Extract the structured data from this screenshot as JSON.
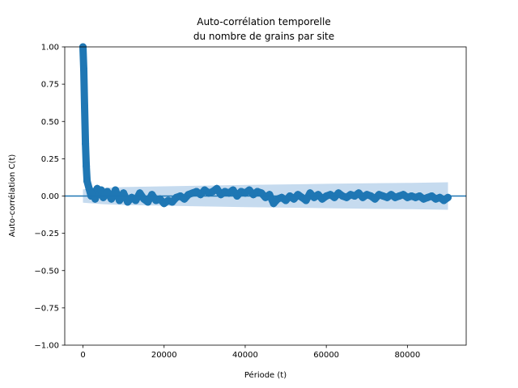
{
  "chart_data": {
    "type": "scatter",
    "title_line1": "Auto-corrélation temporelle",
    "title_line2": "du nombre de grains par site",
    "xlabel": "Période (t)",
    "ylabel": "Auto-corrélation C(t)",
    "xlim": [
      -4500,
      94500
    ],
    "ylim": [
      -1.0,
      1.0
    ],
    "x_ticks": [
      0,
      20000,
      40000,
      60000,
      80000
    ],
    "x_tick_labels": [
      "0",
      "20000",
      "40000",
      "60000",
      "80000"
    ],
    "y_ticks": [
      -1.0,
      -0.75,
      -0.5,
      -0.25,
      0.0,
      0.25,
      0.5,
      0.75,
      1.0
    ],
    "y_tick_labels": [
      "−1.00",
      "−0.75",
      "−0.50",
      "−0.25",
      "0.00",
      "0.25",
      "0.50",
      "0.75",
      "1.00"
    ],
    "grid": false,
    "zero_line": 0.0,
    "confidence_band": {
      "x": [
        0,
        5000,
        10000,
        20000,
        30000,
        40000,
        50000,
        60000,
        70000,
        80000,
        90000
      ],
      "upper": [
        0.045,
        0.055,
        0.06,
        0.065,
        0.07,
        0.075,
        0.078,
        0.082,
        0.085,
        0.088,
        0.092
      ],
      "lower": [
        -0.045,
        -0.055,
        -0.06,
        -0.065,
        -0.07,
        -0.075,
        -0.078,
        -0.082,
        -0.085,
        -0.088,
        -0.092
      ]
    },
    "series": [
      {
        "x": [
          0,
          200,
          400,
          600,
          800,
          1000,
          1500,
          2000,
          2500,
          3000,
          3500,
          4000,
          4500,
          5000,
          6000,
          7000,
          8000,
          9000,
          10000,
          11000,
          12000,
          13000,
          14000,
          15000,
          16000,
          17000,
          18000,
          19000,
          20000,
          21000,
          22000,
          23000,
          24000,
          25000,
          26000,
          27000,
          28000,
          29000,
          30000,
          31000,
          32000,
          33000,
          34000,
          35000,
          36000,
          37000,
          38000,
          39000,
          40000,
          41000,
          42000,
          43000,
          44000,
          45000,
          46000,
          47000,
          48000,
          49000,
          50000,
          51000,
          52000,
          53000,
          54000,
          55000,
          56000,
          57000,
          58000,
          59000,
          60000,
          61000,
          62000,
          63000,
          64000,
          65000,
          66000,
          67000,
          68000,
          69000,
          70000,
          71000,
          72000,
          73000,
          74000,
          75000,
          76000,
          77000,
          78000,
          79000,
          80000,
          81000,
          82000,
          83000,
          84000,
          85000,
          86000,
          87000,
          88000,
          89000,
          90000
        ],
        "y": [
          1.0,
          0.85,
          0.6,
          0.35,
          0.2,
          0.1,
          0.05,
          0.0,
          0.03,
          -0.02,
          0.05,
          0.01,
          0.04,
          -0.01,
          0.03,
          -0.02,
          0.04,
          -0.03,
          0.02,
          -0.04,
          -0.01,
          -0.03,
          0.02,
          -0.02,
          -0.04,
          0.01,
          -0.03,
          -0.02,
          -0.05,
          -0.03,
          -0.04,
          -0.01,
          0.0,
          -0.02,
          0.01,
          0.02,
          0.03,
          0.01,
          0.04,
          0.02,
          0.03,
          0.05,
          0.01,
          0.03,
          0.02,
          0.04,
          0.0,
          0.03,
          0.02,
          0.04,
          0.01,
          0.03,
          0.02,
          -0.01,
          0.01,
          -0.05,
          -0.02,
          -0.01,
          -0.03,
          0.0,
          -0.02,
          0.01,
          -0.01,
          -0.03,
          0.02,
          -0.01,
          0.01,
          -0.02,
          0.0,
          0.01,
          -0.01,
          0.02,
          0.0,
          -0.01,
          0.01,
          0.0,
          0.02,
          -0.01,
          0.01,
          0.0,
          -0.02,
          0.01,
          0.0,
          -0.01,
          0.01,
          -0.01,
          0.0,
          0.01,
          -0.01,
          0.0,
          -0.01,
          0.0,
          -0.02,
          -0.01,
          0.0,
          -0.02,
          -0.01,
          -0.03,
          -0.01
        ]
      }
    ],
    "colors": {
      "series": "#1f77b4",
      "band": "#c6dbef",
      "zero_line": "#1f77b4"
    }
  }
}
